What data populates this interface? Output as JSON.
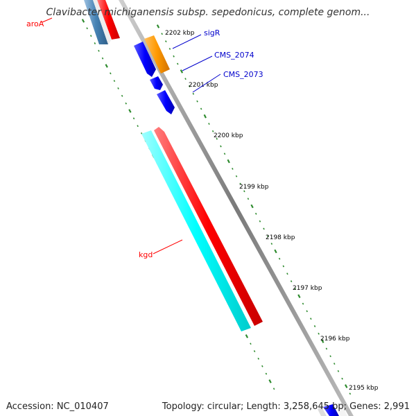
{
  "title": "Clavibacter michiganensis subsp. sepedonicus, complete genom...",
  "footer": {
    "accession": "Accession: NC_010407",
    "summary": "Topology: circular; Length: 3,258,645 bp; Genes: 2,991"
  },
  "colors": {
    "backbone": "#8a8a8a",
    "ticks": "#2e8b2e",
    "gene_red": "#ff0000",
    "gene_cyan": "#00ffff",
    "gene_blue": "#0000ff",
    "gene_orange": "#ff9900",
    "gene_steelblue": "#4682b4",
    "label_red": "#ff0000",
    "label_blue": "#0000cc"
  },
  "scale_labels": [
    "2202 kbp",
    "2201 kbp",
    "2200 kbp",
    "2199 kbp",
    "2198 kbp",
    "2197 kbp",
    "2196 kbp",
    "2195 kbp"
  ],
  "gene_labels": [
    {
      "text": "aroA",
      "color": "red"
    },
    {
      "text": "sigR",
      "color": "blue"
    },
    {
      "text": "CMS_2074",
      "color": "blue"
    },
    {
      "text": "CMS_2073",
      "color": "blue"
    },
    {
      "text": "kgd",
      "color": "red"
    }
  ]
}
